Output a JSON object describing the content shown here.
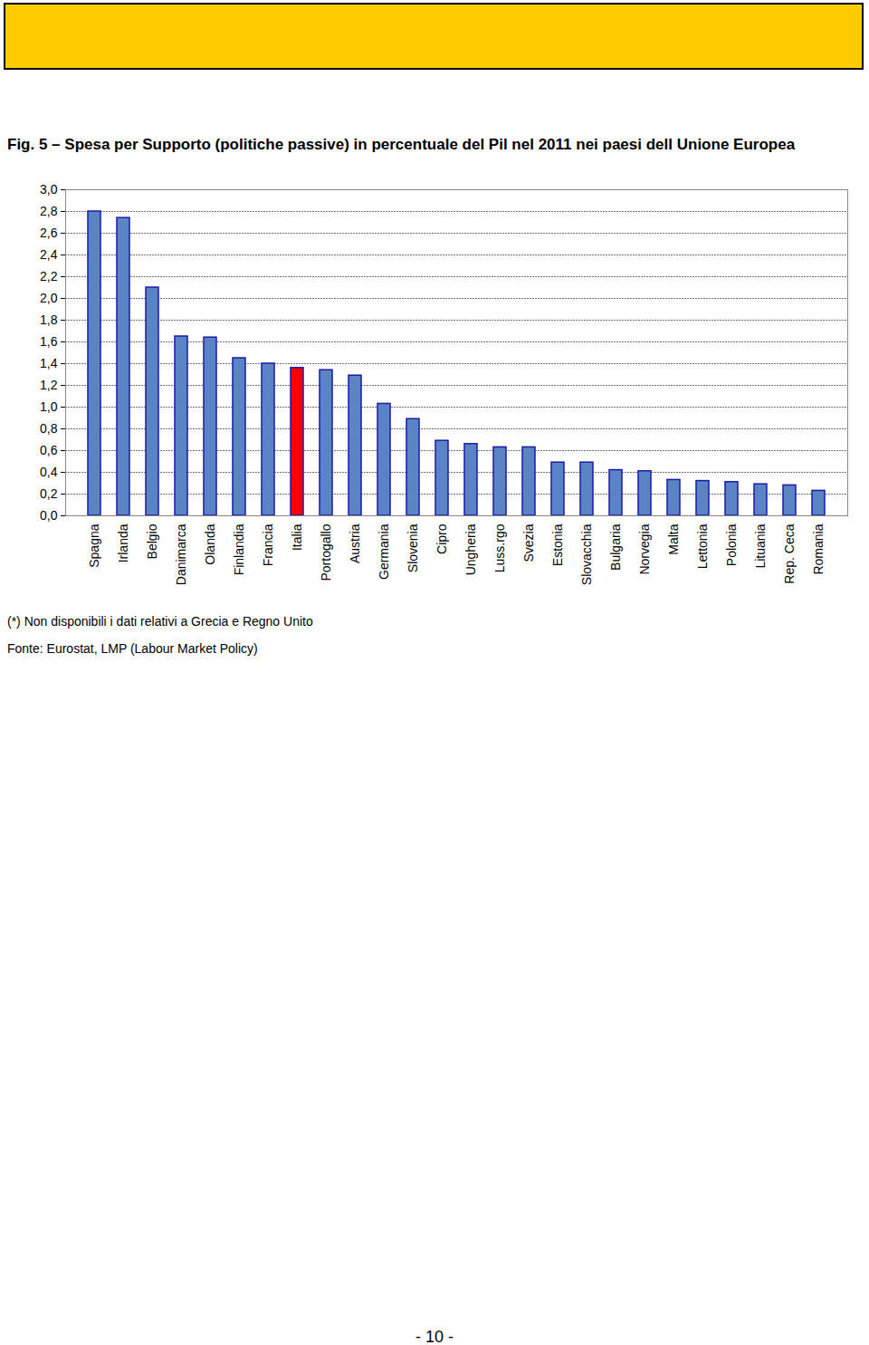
{
  "chart_data": {
    "type": "bar",
    "title": "Fig. 5 – Spesa per Supporto (politiche passive) in percentuale del Pil nel 2011 nei paesi dell Unione Europea",
    "categories": [
      "Spagna",
      "Irlanda",
      "Belgio",
      "Danimarca",
      "Olanda",
      "Finlandia",
      "Francia",
      "Italia",
      "Portogallo",
      "Austria",
      "Germania",
      "Slovenia",
      "Cipro",
      "Ungheria",
      "Luss.rgo",
      "Svezia",
      "Estonia",
      "Slovacchia",
      "Bulgaria",
      "Norvegia",
      "Malta",
      "Lettonia",
      "Polonia",
      "Lituania",
      "Rep. Ceca",
      "Romania"
    ],
    "values": [
      2.8,
      2.74,
      2.1,
      1.65,
      1.64,
      1.45,
      1.4,
      1.36,
      1.34,
      1.29,
      1.03,
      0.89,
      0.69,
      0.66,
      0.63,
      0.63,
      0.49,
      0.49,
      0.42,
      0.41,
      0.33,
      0.32,
      0.31,
      0.29,
      0.28,
      0.23
    ],
    "colors": [
      "#5b84c4",
      "#5b84c4",
      "#5b84c4",
      "#5b84c4",
      "#5b84c4",
      "#5b84c4",
      "#5b84c4",
      "#ff0000",
      "#5b84c4",
      "#5b84c4",
      "#5b84c4",
      "#5b84c4",
      "#5b84c4",
      "#5b84c4",
      "#5b84c4",
      "#5b84c4",
      "#5b84c4",
      "#5b84c4",
      "#5b84c4",
      "#5b84c4",
      "#5b84c4",
      "#5b84c4",
      "#5b84c4",
      "#5b84c4",
      "#5b84c4",
      "#5b84c4"
    ],
    "ylim": [
      0,
      3
    ],
    "yticks": [
      {
        "value": 0,
        "label": "0,0"
      },
      {
        "value": 0.2,
        "label": "0,2"
      },
      {
        "value": 0.4,
        "label": "0,4"
      },
      {
        "value": 0.6,
        "label": "0,6"
      },
      {
        "value": 0.8,
        "label": "0,8"
      },
      {
        "value": 1,
        "label": "1,0"
      },
      {
        "value": 1.2,
        "label": "1,2"
      },
      {
        "value": 1.4,
        "label": "1,4"
      },
      {
        "value": 1.6,
        "label": "1,6"
      },
      {
        "value": 1.8,
        "label": "1,8"
      },
      {
        "value": 2,
        "label": "2,0"
      },
      {
        "value": 2.2,
        "label": "2,2"
      },
      {
        "value": 2.4,
        "label": "2,4"
      },
      {
        "value": 2.6,
        "label": "2,6"
      },
      {
        "value": 2.8,
        "label": "2,8"
      },
      {
        "value": 3,
        "label": "3,0"
      }
    ],
    "grid": true,
    "notes": [
      "(*) Non disponibili i dati relativi a Grecia e Regno Unito",
      "Fonte: Eurostat, LMP (Labour Market Policy)"
    ]
  },
  "page_number": "- 10 -"
}
